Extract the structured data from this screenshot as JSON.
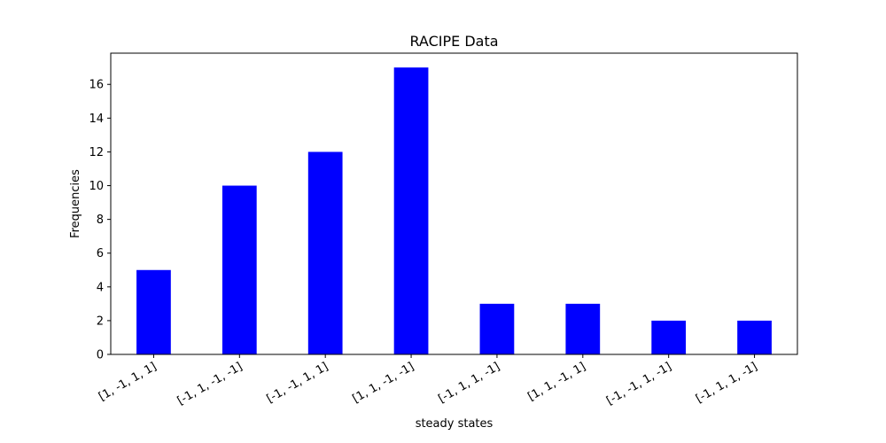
{
  "chart_data": {
    "type": "bar",
    "title": "RACIPE Data",
    "xlabel": "steady states",
    "ylabel": "Frequencies",
    "categories": [
      "[1, -1, 1, 1]",
      "[-1, 1, -1, -1]",
      "[-1, -1, 1, 1]",
      "[1, 1, -1, -1]",
      "[-1, 1, 1, -1]",
      "[1, 1, -1, 1]",
      "[-1, -1, 1, -1]",
      "[-1, 1, 1, -1]"
    ],
    "values": [
      5,
      10,
      12,
      17,
      3,
      3,
      2,
      2
    ],
    "ylim": [
      0,
      17.85
    ],
    "yticks": [
      0,
      2,
      4,
      6,
      8,
      10,
      12,
      14,
      16
    ],
    "bar_color": "#0000ff",
    "grid": false,
    "legend": "none"
  }
}
